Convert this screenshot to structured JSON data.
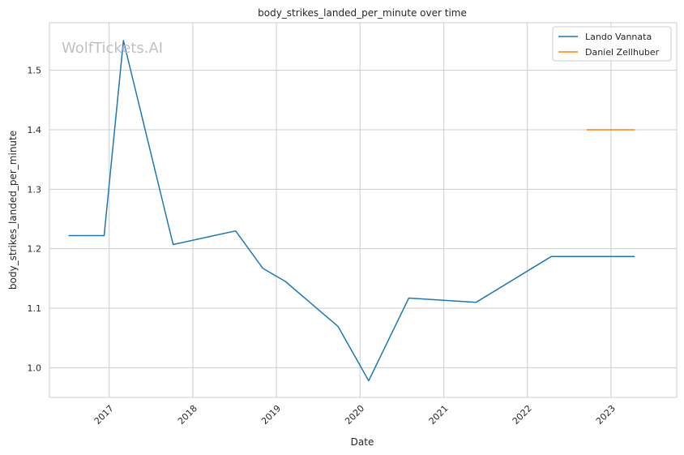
{
  "chart_data": {
    "type": "line",
    "title": "body_strikes_landed_per_minute over time",
    "xlabel": "Date",
    "ylabel": "body_strikes_landed_per_minute",
    "watermark": "WolfTickets.AI",
    "grid": true,
    "legend_position": "top-right",
    "xlim": [
      "2016-04-15",
      "2023-10-15"
    ],
    "ylim": [
      0.95,
      1.58
    ],
    "x_ticks": [
      {
        "date": "2017-01-01",
        "label": "2017"
      },
      {
        "date": "2018-01-01",
        "label": "2018"
      },
      {
        "date": "2019-01-01",
        "label": "2019"
      },
      {
        "date": "2020-01-01",
        "label": "2020"
      },
      {
        "date": "2021-01-01",
        "label": "2021"
      },
      {
        "date": "2022-01-01",
        "label": "2022"
      },
      {
        "date": "2023-01-01",
        "label": "2023"
      }
    ],
    "y_ticks": [
      1.0,
      1.1,
      1.2,
      1.3,
      1.4,
      1.5
    ],
    "series": [
      {
        "name": "Lando Vannata",
        "color": "#1f77b4",
        "points": [
          {
            "x": "2016-07-07",
            "y": 1.222
          },
          {
            "x": "2016-12-10",
            "y": 1.222
          },
          {
            "x": "2017-03-04",
            "y": 1.55
          },
          {
            "x": "2017-10-07",
            "y": 1.207
          },
          {
            "x": "2018-07-07",
            "y": 1.23
          },
          {
            "x": "2018-11-03",
            "y": 1.167
          },
          {
            "x": "2019-02-09",
            "y": 1.145
          },
          {
            "x": "2019-09-28",
            "y": 1.069
          },
          {
            "x": "2020-02-08",
            "y": 0.978
          },
          {
            "x": "2020-08-01",
            "y": 1.117
          },
          {
            "x": "2021-05-22",
            "y": 1.11
          },
          {
            "x": "2022-04-16",
            "y": 1.187
          },
          {
            "x": "2023-04-15",
            "y": 1.187
          }
        ]
      },
      {
        "name": "Daniel Zellhuber",
        "color": "#ff7f0e",
        "points": [
          {
            "x": "2022-09-17",
            "y": 1.4
          },
          {
            "x": "2023-04-15",
            "y": 1.4
          }
        ]
      }
    ]
  }
}
